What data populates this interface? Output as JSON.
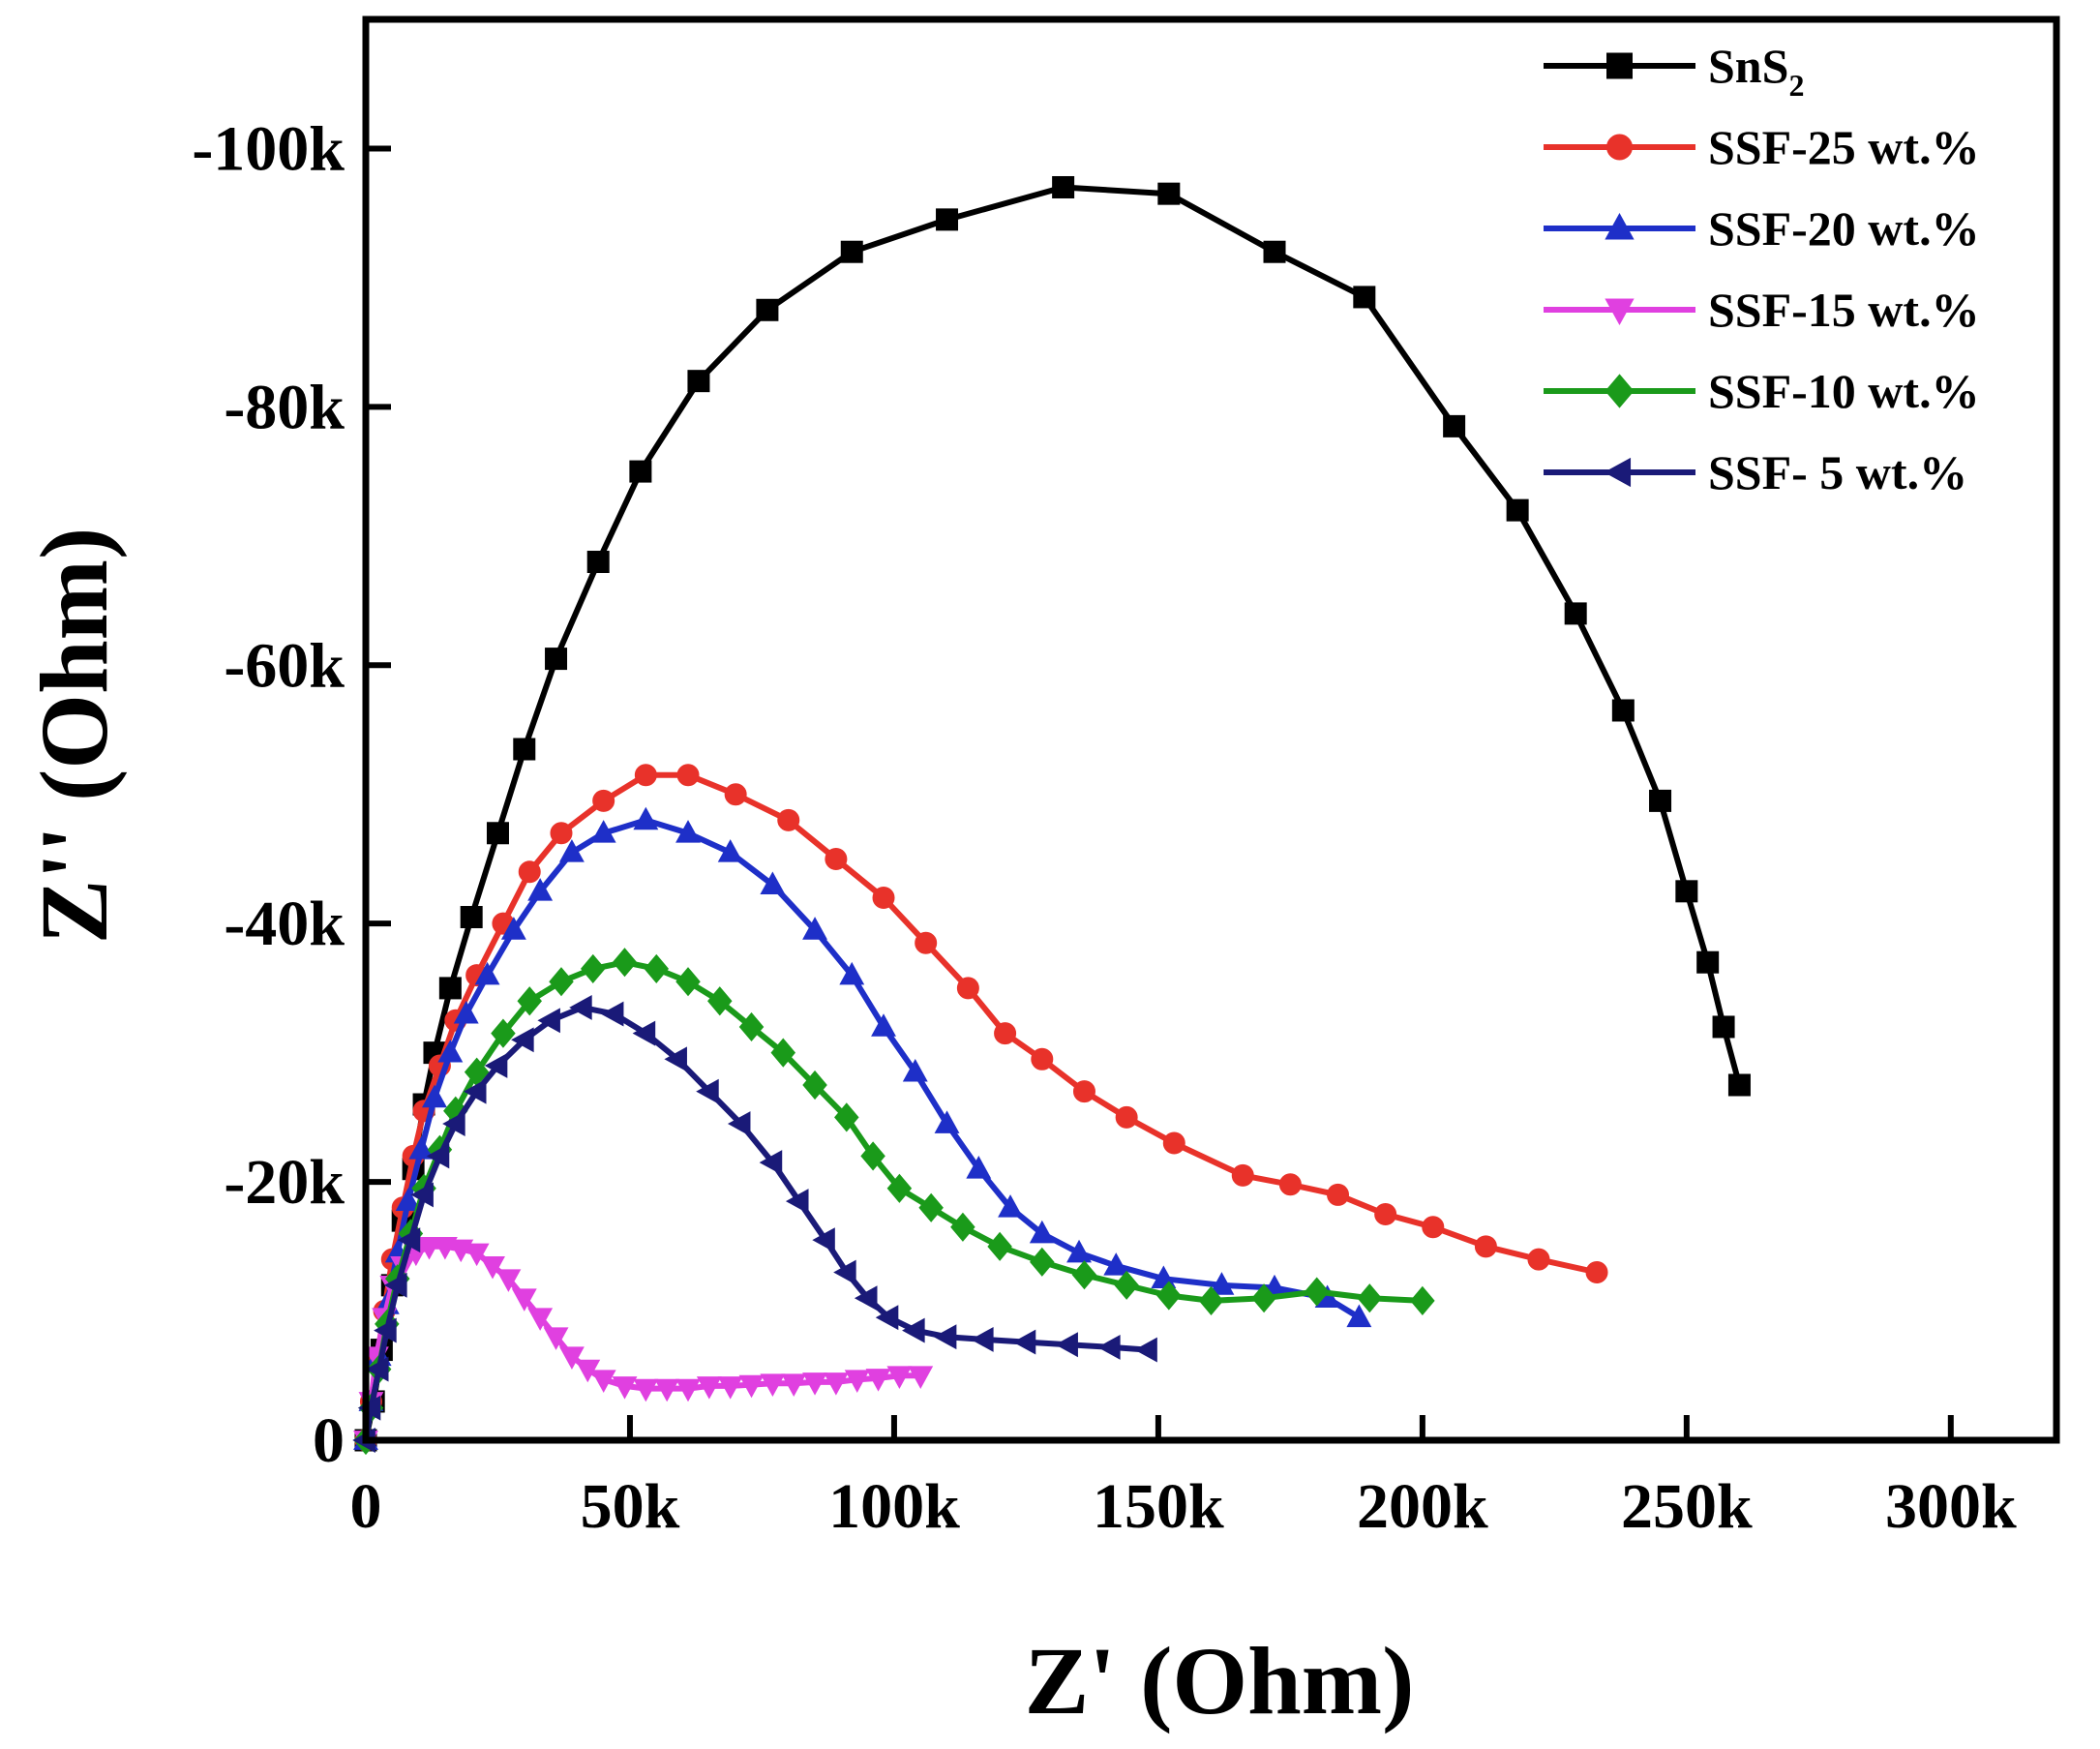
{
  "chart_data": {
    "type": "scatter",
    "title": "",
    "xlabel": "Z' (Ohm)",
    "ylabel": "Z'' (Ohm)",
    "xlim": [
      0,
      320000
    ],
    "ylim": [
      0,
      -110000
    ],
    "x_ticks": [
      0,
      50000,
      100000,
      150000,
      200000,
      250000,
      300000
    ],
    "x_tick_labels": [
      "0",
      "50k",
      "100k",
      "150k",
      "200k",
      "250k",
      "300k"
    ],
    "y_ticks": [
      0,
      -20000,
      -40000,
      -60000,
      -80000,
      -100000
    ],
    "y_tick_labels": [
      "0",
      "-20k",
      "-40k",
      "-60k",
      "-80k",
      "-100k"
    ],
    "legend_position": "top-right",
    "series": [
      {
        "name": "SnS2",
        "label_main": "SnS",
        "label_sub": "2",
        "color": "#000000",
        "marker": "square",
        "points": [
          [
            0,
            0
          ],
          [
            1500,
            -3000
          ],
          [
            3000,
            -7000
          ],
          [
            5000,
            -12000
          ],
          [
            7000,
            -17000
          ],
          [
            9000,
            -21000
          ],
          [
            11000,
            -26000
          ],
          [
            13000,
            -30000
          ],
          [
            16000,
            -35000
          ],
          [
            20000,
            -40500
          ],
          [
            25000,
            -47000
          ],
          [
            30000,
            -53500
          ],
          [
            36000,
            -60500
          ],
          [
            44000,
            -68000
          ],
          [
            52000,
            -75000
          ],
          [
            63000,
            -82000
          ],
          [
            76000,
            -87500
          ],
          [
            92000,
            -92000
          ],
          [
            110000,
            -94500
          ],
          [
            132000,
            -97000
          ],
          [
            152000,
            -96500
          ],
          [
            172000,
            -92000
          ],
          [
            189000,
            -88500
          ],
          [
            206000,
            -78500
          ],
          [
            218000,
            -72000
          ],
          [
            229000,
            -64000
          ],
          [
            238000,
            -56500
          ],
          [
            245000,
            -49500
          ],
          [
            250000,
            -42500
          ],
          [
            254000,
            -37000
          ],
          [
            257000,
            -32000
          ],
          [
            260000,
            -27500
          ]
        ]
      },
      {
        "name": "SSF-25 wt.%",
        "label_main": "SSF-25 wt.%",
        "label_sub": "",
        "color": "#e8322a",
        "marker": "circle",
        "points": [
          [
            0,
            0
          ],
          [
            1000,
            -3000
          ],
          [
            2000,
            -6000
          ],
          [
            3500,
            -10000
          ],
          [
            5000,
            -14000
          ],
          [
            7000,
            -18000
          ],
          [
            9000,
            -22000
          ],
          [
            11000,
            -25500
          ],
          [
            14000,
            -29000
          ],
          [
            17000,
            -32500
          ],
          [
            21000,
            -36000
          ],
          [
            26000,
            -40000
          ],
          [
            31000,
            -44000
          ],
          [
            37000,
            -47000
          ],
          [
            45000,
            -49500
          ],
          [
            53000,
            -51500
          ],
          [
            61000,
            -51500
          ],
          [
            70000,
            -50000
          ],
          [
            80000,
            -48000
          ],
          [
            89000,
            -45000
          ],
          [
            98000,
            -42000
          ],
          [
            106000,
            -38500
          ],
          [
            114000,
            -35000
          ],
          [
            121000,
            -31500
          ],
          [
            128000,
            -29500
          ],
          [
            136000,
            -27000
          ],
          [
            144000,
            -25000
          ],
          [
            153000,
            -23000
          ],
          [
            166000,
            -20500
          ],
          [
            175000,
            -19800
          ],
          [
            184000,
            -19000
          ],
          [
            193000,
            -17500
          ],
          [
            202000,
            -16500
          ],
          [
            212000,
            -15000
          ],
          [
            222000,
            -14000
          ],
          [
            233000,
            -13000
          ]
        ]
      },
      {
        "name": "SSF-20 wt.%",
        "label_main": "SSF-20 wt.%",
        "label_sub": "",
        "color": "#1e2fc8",
        "marker": "triangle-up",
        "points": [
          [
            0,
            0
          ],
          [
            1000,
            -3000
          ],
          [
            2500,
            -6500
          ],
          [
            4000,
            -10500
          ],
          [
            6000,
            -14500
          ],
          [
            8000,
            -18500
          ],
          [
            10500,
            -22500
          ],
          [
            13000,
            -26500
          ],
          [
            16000,
            -30000
          ],
          [
            19000,
            -33000
          ],
          [
            23000,
            -36000
          ],
          [
            28000,
            -39500
          ],
          [
            33000,
            -42500
          ],
          [
            39000,
            -45500
          ],
          [
            45000,
            -47000
          ],
          [
            53000,
            -48000
          ],
          [
            61000,
            -47000
          ],
          [
            69000,
            -45500
          ],
          [
            77000,
            -43000
          ],
          [
            85000,
            -39500
          ],
          [
            92000,
            -36000
          ],
          [
            98000,
            -32000
          ],
          [
            104000,
            -28500
          ],
          [
            110000,
            -24500
          ],
          [
            116000,
            -21000
          ],
          [
            122000,
            -18000
          ],
          [
            128000,
            -16000
          ],
          [
            135000,
            -14500
          ],
          [
            142000,
            -13500
          ],
          [
            151000,
            -12500
          ],
          [
            162000,
            -12000
          ],
          [
            172000,
            -11800
          ],
          [
            182000,
            -11000
          ],
          [
            188000,
            -9500
          ]
        ]
      },
      {
        "name": "SSF-15 wt.%",
        "label_main": "SSF-15 wt.%",
        "label_sub": "",
        "color": "#e040e0",
        "marker": "triangle-down",
        "points": [
          [
            0,
            0
          ],
          [
            1000,
            -3000
          ],
          [
            2000,
            -6500
          ],
          [
            3500,
            -9500
          ],
          [
            5000,
            -12000
          ],
          [
            7000,
            -13500
          ],
          [
            9500,
            -14500
          ],
          [
            12000,
            -15000
          ],
          [
            15000,
            -15000
          ],
          [
            18000,
            -14800
          ],
          [
            21000,
            -14500
          ],
          [
            24000,
            -13500
          ],
          [
            27000,
            -12500
          ],
          [
            30000,
            -11000
          ],
          [
            33000,
            -9500
          ],
          [
            36000,
            -8000
          ],
          [
            39000,
            -6500
          ],
          [
            42000,
            -5500
          ],
          [
            45000,
            -4700
          ],
          [
            49000,
            -4200
          ],
          [
            53000,
            -4000
          ],
          [
            57000,
            -4000
          ],
          [
            61000,
            -4000
          ],
          [
            65000,
            -4200
          ],
          [
            69000,
            -4200
          ],
          [
            73000,
            -4300
          ],
          [
            77000,
            -4400
          ],
          [
            81000,
            -4400
          ],
          [
            85000,
            -4500
          ],
          [
            89000,
            -4500
          ],
          [
            93000,
            -4700
          ],
          [
            97000,
            -4800
          ],
          [
            101000,
            -5000
          ],
          [
            105000,
            -5000
          ]
        ]
      },
      {
        "name": "SSF-10 wt.%",
        "label_main": "SSF-10 wt.%",
        "label_sub": "",
        "color": "#1a9a1a",
        "marker": "diamond",
        "points": [
          [
            0,
            0
          ],
          [
            1000,
            -2500
          ],
          [
            2500,
            -5500
          ],
          [
            4000,
            -9000
          ],
          [
            6000,
            -12500
          ],
          [
            8500,
            -16000
          ],
          [
            11000,
            -19500
          ],
          [
            14000,
            -22500
          ],
          [
            17000,
            -25500
          ],
          [
            21000,
            -28500
          ],
          [
            26000,
            -31500
          ],
          [
            31000,
            -34000
          ],
          [
            37000,
            -35500
          ],
          [
            43000,
            -36500
          ],
          [
            49000,
            -37000
          ],
          [
            55000,
            -36500
          ],
          [
            61000,
            -35500
          ],
          [
            67000,
            -34000
          ],
          [
            73000,
            -32000
          ],
          [
            79000,
            -30000
          ],
          [
            85000,
            -27500
          ],
          [
            91000,
            -25000
          ],
          [
            96000,
            -22000
          ],
          [
            101000,
            -19500
          ],
          [
            107000,
            -18000
          ],
          [
            113000,
            -16500
          ],
          [
            120000,
            -15000
          ],
          [
            128000,
            -13800
          ],
          [
            136000,
            -12800
          ],
          [
            144000,
            -12000
          ],
          [
            152000,
            -11200
          ],
          [
            160000,
            -10800
          ],
          [
            170000,
            -11000
          ],
          [
            180000,
            -11500
          ],
          [
            190000,
            -11000
          ],
          [
            200000,
            -10800
          ]
        ]
      },
      {
        "name": "SSF-  5 wt.%",
        "label_main": "SSF-  5 wt.%",
        "label_sub": "",
        "color": "#1a1a78",
        "marker": "triangle-left",
        "points": [
          [
            0,
            0
          ],
          [
            1000,
            -2500
          ],
          [
            2500,
            -5500
          ],
          [
            4000,
            -8500
          ],
          [
            6000,
            -12000
          ],
          [
            8500,
            -15500
          ],
          [
            11000,
            -19000
          ],
          [
            14000,
            -22000
          ],
          [
            17000,
            -24500
          ],
          [
            21000,
            -27000
          ],
          [
            25000,
            -29000
          ],
          [
            30000,
            -31000
          ],
          [
            35000,
            -32500
          ],
          [
            41000,
            -33500
          ],
          [
            47000,
            -33000
          ],
          [
            53000,
            -31500
          ],
          [
            59000,
            -29500
          ],
          [
            65000,
            -27000
          ],
          [
            71000,
            -24500
          ],
          [
            77000,
            -21500
          ],
          [
            82000,
            -18500
          ],
          [
            87000,
            -15500
          ],
          [
            91000,
            -13000
          ],
          [
            95000,
            -11000
          ],
          [
            99000,
            -9500
          ],
          [
            104000,
            -8500
          ],
          [
            110000,
            -8000
          ],
          [
            117000,
            -7800
          ],
          [
            125000,
            -7600
          ],
          [
            133000,
            -7400
          ],
          [
            141000,
            -7200
          ],
          [
            148000,
            -7000
          ]
        ]
      }
    ]
  }
}
